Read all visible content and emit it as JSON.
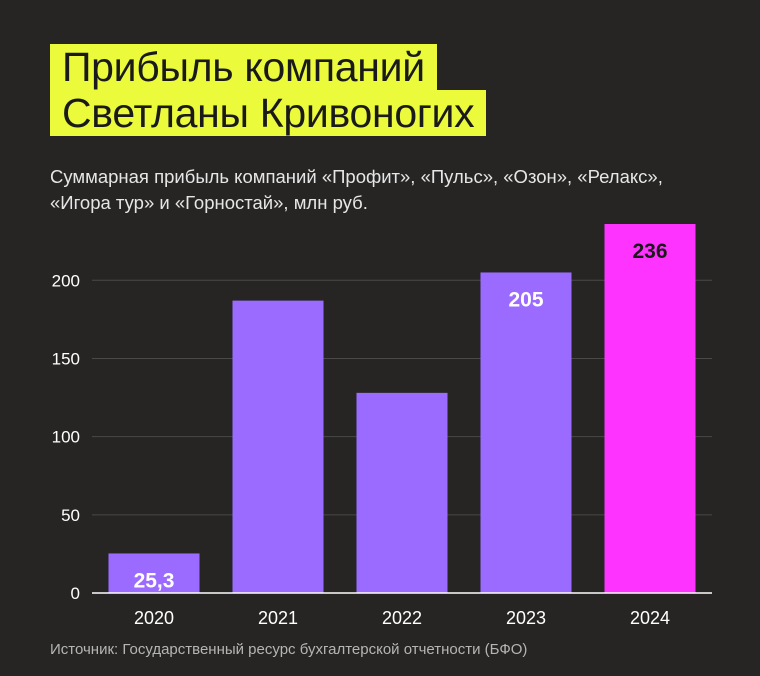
{
  "title": {
    "line1": "Прибыль компаний",
    "line2": "Светланы Кривоногих"
  },
  "subtitle": "Суммарная прибыль компаний «Профит», «Пульс», «Озон», «Релакс», «Игора тур» и «Горностай», млн руб.",
  "source": "Источник: Государственный ресурс бухгалтерской отчетности (БФО)",
  "colors": {
    "background": "#262524",
    "title_bg": "#ecfa3c",
    "bar": "#9b6bff",
    "highlight_bar": "#ff33ff",
    "grid": "#4a4948"
  },
  "chart_data": {
    "type": "bar",
    "categories": [
      "2020",
      "2021",
      "2022",
      "2023",
      "2024"
    ],
    "values": [
      25.3,
      187,
      128,
      205,
      236
    ],
    "data_labels": [
      "25,3",
      "",
      "",
      "205",
      "236"
    ],
    "highlight_index": 4,
    "yticks": [
      0,
      50,
      100,
      150,
      200
    ],
    "ylim": [
      0,
      236
    ],
    "grid": true
  }
}
